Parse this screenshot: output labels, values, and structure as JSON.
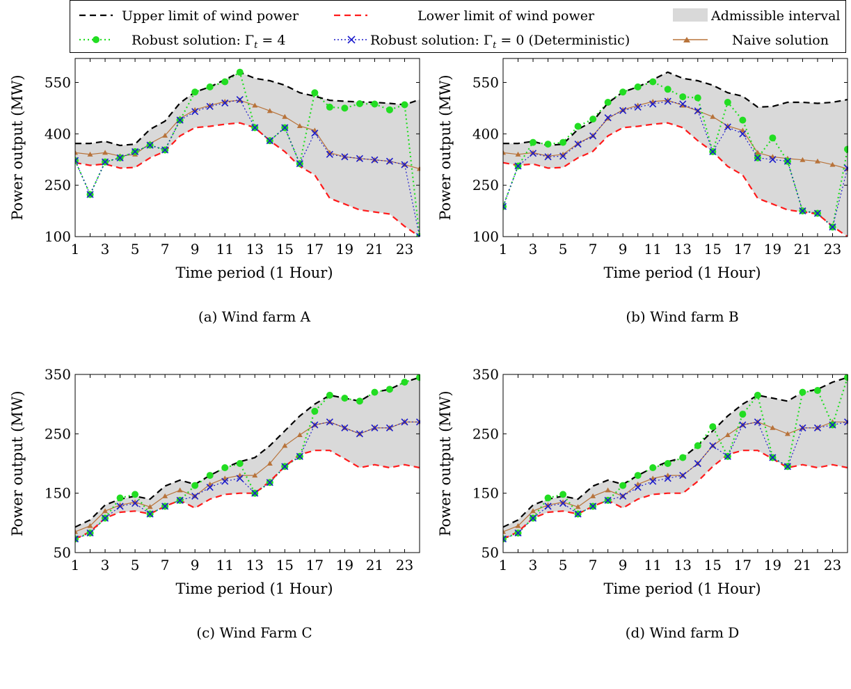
{
  "legend": {
    "upper": "Upper limit of wind power",
    "lower": "Lower limit of wind power",
    "interval": "Admissible interval",
    "robust4": "Robust solution: Γ",
    "robust4_sub": "t",
    "robust4_tail": " = 4",
    "robust0": "Robust solution: Γ",
    "robust0_sub": "t",
    "robust0_tail": " = 0 (Deterministic)",
    "naive": "Naive solution"
  },
  "colors": {
    "upper": "#000000",
    "lower": "#ff1a1a",
    "interval": "#d9d9d9",
    "robust4": "#22dd22",
    "robust0": "#1a1acc",
    "naive": "#b8733a"
  },
  "chart_data": [
    {
      "type": "line",
      "caption": "(a) Wind farm A",
      "xlabel": "Time period (1 Hour)",
      "ylabel": "Power output (MW)",
      "xlim": [
        1,
        24
      ],
      "ylim": [
        100,
        620
      ],
      "yticks": [
        100,
        250,
        400,
        550
      ],
      "xticks": [
        1,
        3,
        5,
        7,
        9,
        11,
        13,
        15,
        17,
        19,
        21,
        23
      ],
      "x": [
        1,
        2,
        3,
        4,
        5,
        6,
        7,
        8,
        9,
        10,
        11,
        12,
        13,
        14,
        15,
        16,
        17,
        18,
        19,
        20,
        21,
        22,
        23,
        24
      ],
      "series": [
        {
          "name": "Upper limit of wind power",
          "values": [
            372,
            372,
            378,
            366,
            370,
            413,
            437,
            490,
            522,
            537,
            558,
            580,
            562,
            555,
            542,
            520,
            510,
            498,
            495,
            493,
            492,
            489,
            485,
            500
          ]
        },
        {
          "name": "Lower limit of wind power",
          "values": [
            316,
            308,
            312,
            300,
            302,
            330,
            349,
            394,
            418,
            422,
            428,
            432,
            418,
            380,
            348,
            305,
            280,
            212,
            195,
            178,
            172,
            166,
            130,
            100
          ]
        },
        {
          "name": "Robust solution: Γt = 4",
          "values": [
            322,
            223,
            318,
            330,
            348,
            367,
            353,
            440,
            522,
            537,
            552,
            580,
            418,
            380,
            418,
            313,
            520,
            478,
            475,
            488,
            487,
            470,
            485,
            100
          ]
        },
        {
          "name": "Robust solution: Γt = 0 (Deterministic)",
          "values": [
            322,
            223,
            318,
            330,
            348,
            367,
            353,
            440,
            465,
            480,
            490,
            500,
            418,
            380,
            418,
            313,
            402,
            340,
            333,
            328,
            324,
            320,
            310,
            100
          ]
        },
        {
          "name": "Naive solution",
          "values": [
            345,
            340,
            345,
            335,
            340,
            372,
            395,
            445,
            470,
            483,
            494,
            498,
            483,
            467,
            450,
            423,
            410,
            345,
            333,
            328,
            324,
            320,
            310,
            298
          ]
        }
      ]
    },
    {
      "type": "line",
      "caption": "(b) Wind farm B",
      "xlabel": "Time period (1 Hour)",
      "ylabel": "Power output (MW)",
      "xlim": [
        1,
        24
      ],
      "ylim": [
        100,
        620
      ],
      "yticks": [
        100,
        250,
        400,
        550
      ],
      "xticks": [
        1,
        3,
        5,
        7,
        9,
        11,
        13,
        15,
        17,
        19,
        21,
        23
      ],
      "x": [
        1,
        2,
        3,
        4,
        5,
        6,
        7,
        8,
        9,
        10,
        11,
        12,
        13,
        14,
        15,
        16,
        17,
        18,
        19,
        20,
        21,
        22,
        23,
        24
      ],
      "series": [
        {
          "name": "Upper limit of wind power",
          "values": [
            372,
            372,
            378,
            366,
            370,
            413,
            437,
            490,
            522,
            537,
            558,
            580,
            562,
            555,
            542,
            520,
            510,
            478,
            480,
            492,
            492,
            489,
            492,
            500
          ]
        },
        {
          "name": "Lower limit of wind power",
          "values": [
            316,
            308,
            312,
            300,
            302,
            330,
            349,
            394,
            418,
            422,
            428,
            432,
            418,
            380,
            348,
            305,
            280,
            212,
            195,
            178,
            172,
            166,
            130,
            100
          ]
        },
        {
          "name": "Robust solution: Γt = 4",
          "values": [
            188,
            306,
            375,
            370,
            375,
            422,
            443,
            492,
            522,
            537,
            552,
            530,
            508,
            505,
            348,
            492,
            440,
            330,
            388,
            320,
            175,
            168,
            128,
            355
          ]
        },
        {
          "name": "Robust solution: Γt = 0 (Deterministic)",
          "values": [
            188,
            306,
            343,
            333,
            335,
            370,
            394,
            447,
            468,
            478,
            487,
            495,
            487,
            467,
            348,
            420,
            400,
            330,
            325,
            320,
            175,
            168,
            128,
            300
          ]
        },
        {
          "name": "Naive solution",
          "values": [
            345,
            340,
            345,
            335,
            340,
            372,
            395,
            445,
            470,
            483,
            494,
            498,
            483,
            467,
            450,
            423,
            410,
            345,
            333,
            328,
            324,
            320,
            310,
            298
          ]
        }
      ]
    },
    {
      "type": "line",
      "caption": "(c) Wind Farm C",
      "xlabel": "Time period (1 Hour)",
      "ylabel": "Power output (MW)",
      "xlim": [
        1,
        24
      ],
      "ylim": [
        50,
        350
      ],
      "yticks": [
        50,
        150,
        250,
        350
      ],
      "xticks": [
        1,
        3,
        5,
        7,
        9,
        11,
        13,
        15,
        17,
        19,
        21,
        23
      ],
      "x": [
        1,
        2,
        3,
        4,
        5,
        6,
        7,
        8,
        9,
        10,
        11,
        12,
        13,
        14,
        15,
        16,
        17,
        18,
        19,
        20,
        21,
        22,
        23,
        24
      ],
      "series": [
        {
          "name": "Upper limit of wind power",
          "values": [
            93,
            105,
            130,
            140,
            145,
            140,
            162,
            172,
            165,
            180,
            193,
            203,
            210,
            230,
            255,
            280,
            300,
            315,
            310,
            305,
            320,
            325,
            337,
            345
          ]
        },
        {
          "name": "Lower limit of wind power",
          "values": [
            73,
            85,
            108,
            118,
            120,
            115,
            128,
            138,
            125,
            140,
            148,
            150,
            150,
            170,
            195,
            215,
            222,
            222,
            208,
            193,
            198,
            193,
            198,
            193
          ]
        },
        {
          "name": "Robust solution: Γt = 4",
          "values": [
            73,
            83,
            108,
            142,
            148,
            115,
            128,
            138,
            163,
            180,
            193,
            200,
            150,
            168,
            195,
            212,
            288,
            315,
            310,
            305,
            320,
            325,
            337,
            345
          ]
        },
        {
          "name": "Robust solution: Γt = 0 (Deterministic)",
          "values": [
            73,
            83,
            108,
            128,
            133,
            115,
            128,
            138,
            145,
            160,
            170,
            175,
            150,
            168,
            195,
            212,
            265,
            270,
            260,
            250,
            260,
            260,
            270,
            270
          ]
        },
        {
          "name": "Naive solution",
          "values": [
            85,
            95,
            120,
            130,
            135,
            127,
            145,
            155,
            145,
            165,
            175,
            180,
            180,
            200,
            230,
            248,
            265,
            270,
            260,
            250,
            260,
            260,
            270,
            270
          ]
        }
      ]
    },
    {
      "type": "line",
      "caption": "(d) Wind farm D",
      "xlabel": "Time period (1 Hour)",
      "ylabel": "Power output (MW)",
      "xlim": [
        1,
        24
      ],
      "ylim": [
        50,
        350
      ],
      "yticks": [
        50,
        150,
        250,
        350
      ],
      "xticks": [
        1,
        3,
        5,
        7,
        9,
        11,
        13,
        15,
        17,
        19,
        21,
        23
      ],
      "x": [
        1,
        2,
        3,
        4,
        5,
        6,
        7,
        8,
        9,
        10,
        11,
        12,
        13,
        14,
        15,
        16,
        17,
        18,
        19,
        20,
        21,
        22,
        23,
        24
      ],
      "series": [
        {
          "name": "Upper limit of wind power",
          "values": [
            93,
            105,
            130,
            140,
            145,
            140,
            162,
            172,
            165,
            180,
            193,
            203,
            210,
            230,
            255,
            280,
            300,
            315,
            310,
            305,
            320,
            325,
            337,
            345
          ]
        },
        {
          "name": "Lower limit of wind power",
          "values": [
            73,
            85,
            108,
            118,
            120,
            115,
            128,
            138,
            125,
            140,
            148,
            150,
            150,
            170,
            195,
            215,
            222,
            222,
            208,
            193,
            198,
            193,
            198,
            193
          ]
        },
        {
          "name": "Robust solution: Γt = 4",
          "values": [
            73,
            83,
            108,
            142,
            148,
            115,
            128,
            138,
            163,
            180,
            193,
            200,
            210,
            230,
            262,
            212,
            283,
            315,
            210,
            195,
            320,
            323,
            265,
            345
          ]
        },
        {
          "name": "Robust solution: Γt = 0 (Deterministic)",
          "values": [
            73,
            83,
            108,
            128,
            133,
            115,
            128,
            138,
            145,
            160,
            170,
            175,
            180,
            200,
            230,
            212,
            265,
            270,
            210,
            195,
            260,
            260,
            265,
            270
          ]
        },
        {
          "name": "Naive solution",
          "values": [
            85,
            95,
            120,
            130,
            135,
            127,
            145,
            155,
            145,
            165,
            175,
            180,
            180,
            200,
            230,
            248,
            265,
            270,
            260,
            250,
            260,
            260,
            270,
            270
          ]
        }
      ]
    }
  ]
}
